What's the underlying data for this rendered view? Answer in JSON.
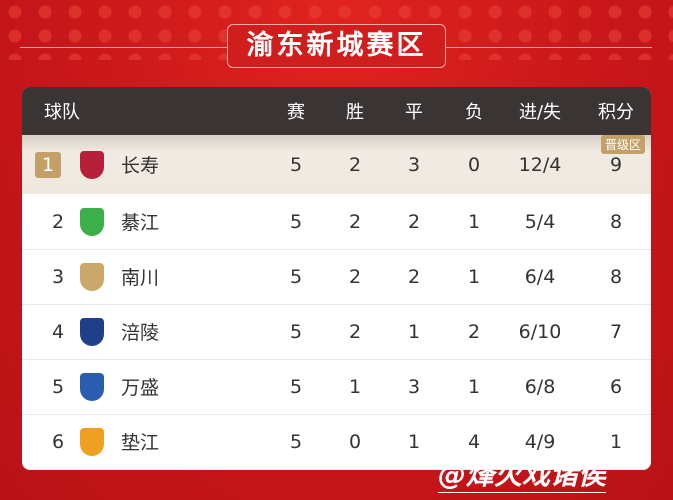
{
  "title": "渝东新城赛区",
  "headers": {
    "team": "球队",
    "played": "赛",
    "won": "胜",
    "drawn": "平",
    "lost": "负",
    "goals": "进/失",
    "points": "积分"
  },
  "promotion_badge": "晋级区",
  "rows": [
    {
      "rank": "1",
      "team": "长寿",
      "played": "5",
      "won": "2",
      "drawn": "3",
      "lost": "0",
      "goals": "12/4",
      "points": "9",
      "logo_color": "#b8203a"
    },
    {
      "rank": "2",
      "team": "綦江",
      "played": "5",
      "won": "2",
      "drawn": "2",
      "lost": "1",
      "goals": "5/4",
      "points": "8",
      "logo_color": "#3bb04a"
    },
    {
      "rank": "3",
      "team": "南川",
      "played": "5",
      "won": "2",
      "drawn": "2",
      "lost": "1",
      "goals": "6/4",
      "points": "8",
      "logo_color": "#c9a86a"
    },
    {
      "rank": "4",
      "team": "涪陵",
      "played": "5",
      "won": "2",
      "drawn": "1",
      "lost": "2",
      "goals": "6/10",
      "points": "7",
      "logo_color": "#1f3f8a"
    },
    {
      "rank": "5",
      "team": "万盛",
      "played": "5",
      "won": "1",
      "drawn": "3",
      "lost": "1",
      "goals": "6/8",
      "points": "6",
      "logo_color": "#2a5db0"
    },
    {
      "rank": "6",
      "team": "垫江",
      "played": "5",
      "won": "0",
      "drawn": "1",
      "lost": "4",
      "goals": "4/9",
      "points": "1",
      "logo_color": "#f0a020"
    }
  ],
  "watermark": "@烽火戏诸侯"
}
